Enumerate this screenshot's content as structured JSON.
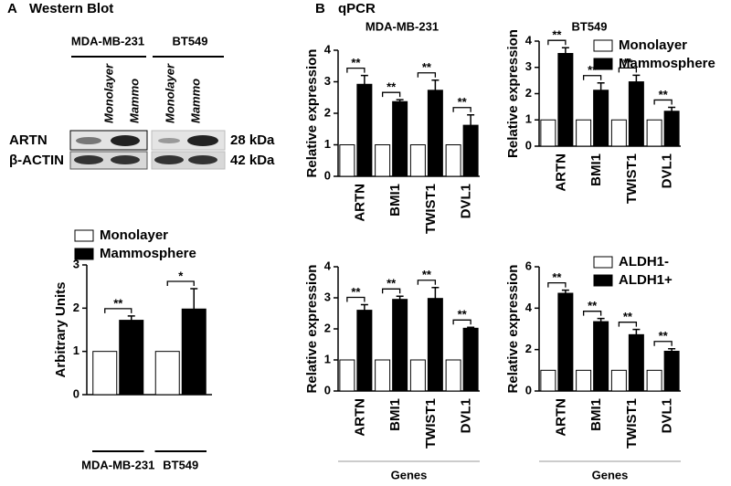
{
  "western_blot": {
    "panel_label": "A",
    "title": "Western Blot",
    "cell_lines": [
      "MDA-MB-231",
      "BT549"
    ],
    "lanes": [
      "Monolayer",
      "Mammo",
      "Monolayer",
      "Mammo"
    ],
    "proteins": [
      "ARTN",
      "β-ACTIN"
    ],
    "sizes": [
      "28 kDa",
      "42 kDa"
    ]
  },
  "qpcr": {
    "panel_label": "B",
    "title": "qPCR"
  },
  "chart_data": [
    {
      "type": "bar",
      "ylabel": "Arbitrary Units",
      "categories": [
        "MDA-MB-231",
        "BT549"
      ],
      "series": [
        {
          "name": "Monolayer",
          "color": "#ffffff",
          "values": [
            1,
            1
          ]
        },
        {
          "name": "Mammosphere",
          "color": "#000000",
          "values": [
            1.72,
            1.98
          ],
          "errors": [
            0.1,
            0.47
          ]
        }
      ],
      "significance": [
        "**",
        "*"
      ],
      "ylim": [
        0,
        3
      ],
      "yticks": [
        0,
        1,
        2,
        3
      ]
    },
    {
      "type": "bar",
      "title": "MDA-MB-231",
      "ylabel": "Relative expression",
      "categories": [
        "ARTN",
        "BMI1",
        "TWIST1",
        "DVL1"
      ],
      "series": [
        {
          "color": "#ffffff",
          "values": [
            1,
            1,
            1,
            1
          ]
        },
        {
          "color": "#000000",
          "values": [
            2.92,
            2.37,
            2.73,
            1.62
          ],
          "errors": [
            0.28,
            0.06,
            0.32,
            0.33
          ]
        }
      ],
      "significance": [
        "**",
        "**",
        "**",
        "**"
      ],
      "ylim": [
        0,
        4
      ],
      "yticks": [
        0,
        1,
        2,
        3,
        4
      ]
    },
    {
      "type": "bar",
      "title": "BT549",
      "ylabel": "Relative expression",
      "categories": [
        "ARTN",
        "BMI1",
        "TWIST1",
        "DVL1"
      ],
      "series": [
        {
          "name": "Monolayer",
          "color": "#ffffff",
          "values": [
            1,
            1,
            1,
            1
          ]
        },
        {
          "name": "Mammosphere",
          "color": "#000000",
          "values": [
            3.53,
            2.13,
            2.45,
            1.33
          ],
          "errors": [
            0.22,
            0.28,
            0.25,
            0.15
          ]
        }
      ],
      "significance": [
        "**",
        "**",
        "**",
        "**"
      ],
      "ylim": [
        0,
        4
      ],
      "yticks": [
        0,
        1,
        2,
        3,
        4
      ]
    },
    {
      "type": "bar",
      "ylabel": "Relative expression",
      "xlabel": "Genes",
      "categories": [
        "ARTN",
        "BMI1",
        "TWIST1",
        "DVL1"
      ],
      "series": [
        {
          "color": "#ffffff",
          "values": [
            1,
            1,
            1,
            1
          ]
        },
        {
          "color": "#000000",
          "values": [
            2.6,
            2.95,
            2.98,
            2.02
          ],
          "errors": [
            0.18,
            0.1,
            0.35,
            0.03
          ]
        }
      ],
      "significance": [
        "**",
        "**",
        "**",
        "**"
      ],
      "ylim": [
        0,
        4
      ],
      "yticks": [
        0,
        1,
        2,
        3,
        4
      ]
    },
    {
      "type": "bar",
      "ylabel": "Relative expression",
      "xlabel": "Genes",
      "categories": [
        "ARTN",
        "BMI1",
        "TWIST1",
        "DVL1"
      ],
      "series": [
        {
          "name": "ALDH1-",
          "color": "#ffffff",
          "values": [
            1,
            1,
            1,
            1
          ]
        },
        {
          "name": "ALDH1+",
          "color": "#000000",
          "values": [
            4.72,
            3.35,
            2.72,
            1.92
          ],
          "errors": [
            0.15,
            0.15,
            0.25,
            0.12
          ]
        }
      ],
      "significance": [
        "**",
        "**",
        "**",
        "**"
      ],
      "ylim": [
        0,
        6
      ],
      "yticks": [
        0,
        2,
        4,
        6
      ]
    }
  ]
}
